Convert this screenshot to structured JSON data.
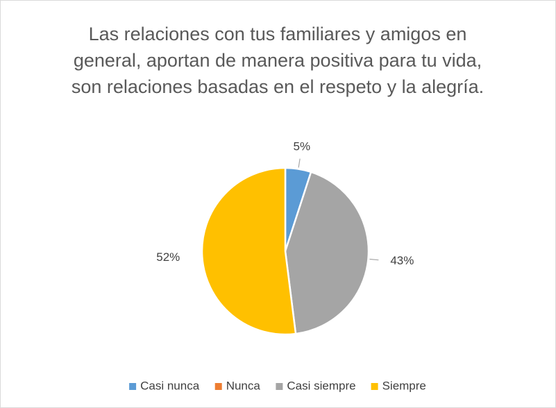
{
  "chart_data": {
    "type": "pie",
    "title": "Las relaciones con tus familiares y amigos en general, aportan de manera positiva para tu vida, son relaciones basadas en el respeto y la alegría.",
    "categories": [
      "Casi nunca",
      "Nunca",
      "Casi siempre",
      "Siempre"
    ],
    "values": [
      5,
      0,
      43,
      52
    ],
    "value_labels": [
      "5%",
      null,
      "43%",
      "52%"
    ],
    "colors": [
      "#5b9bd5",
      "#ed7d31",
      "#a5a5a5",
      "#ffc000"
    ],
    "legend": "bottom"
  }
}
